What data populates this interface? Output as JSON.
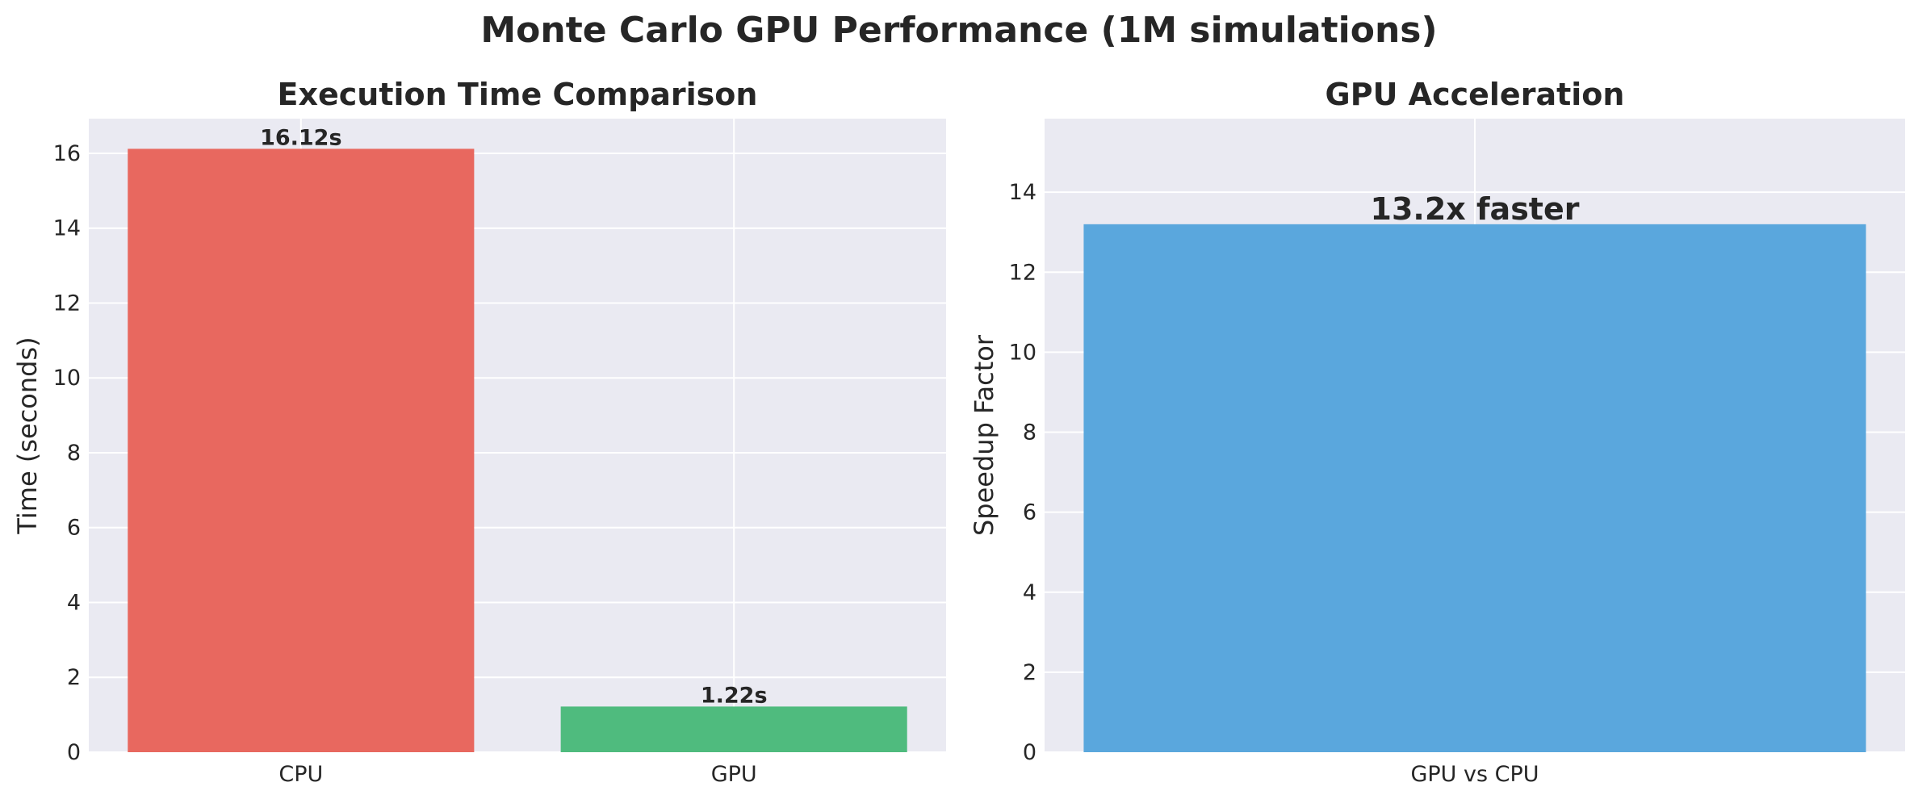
{
  "suptitle": "Monte Carlo GPU Performance (1M simulations)",
  "chart_data": [
    {
      "type": "bar",
      "title": "Execution Time Comparison",
      "xlabel": "",
      "ylabel": "Time (seconds)",
      "categories": [
        "CPU",
        "GPU"
      ],
      "values": [
        16.12,
        1.22
      ],
      "bar_labels": [
        "16.12s",
        "1.22s"
      ],
      "colors": [
        "#e8685f",
        "#4fbb7e"
      ],
      "ylim": [
        0,
        16.926
      ],
      "yticks": [
        0,
        2,
        4,
        6,
        8,
        10,
        12,
        14,
        16
      ],
      "grid": true
    },
    {
      "type": "bar",
      "title": "GPU Acceleration",
      "xlabel": "",
      "ylabel": "Speedup Factor",
      "categories": [
        "GPU vs CPU"
      ],
      "values": [
        13.2
      ],
      "bar_labels": [
        "13.2x faster"
      ],
      "colors": [
        "#5aa7dd"
      ],
      "ylim": [
        0,
        15.84
      ],
      "yticks": [
        0,
        2,
        4,
        6,
        8,
        10,
        12,
        14
      ],
      "grid": true
    }
  ]
}
